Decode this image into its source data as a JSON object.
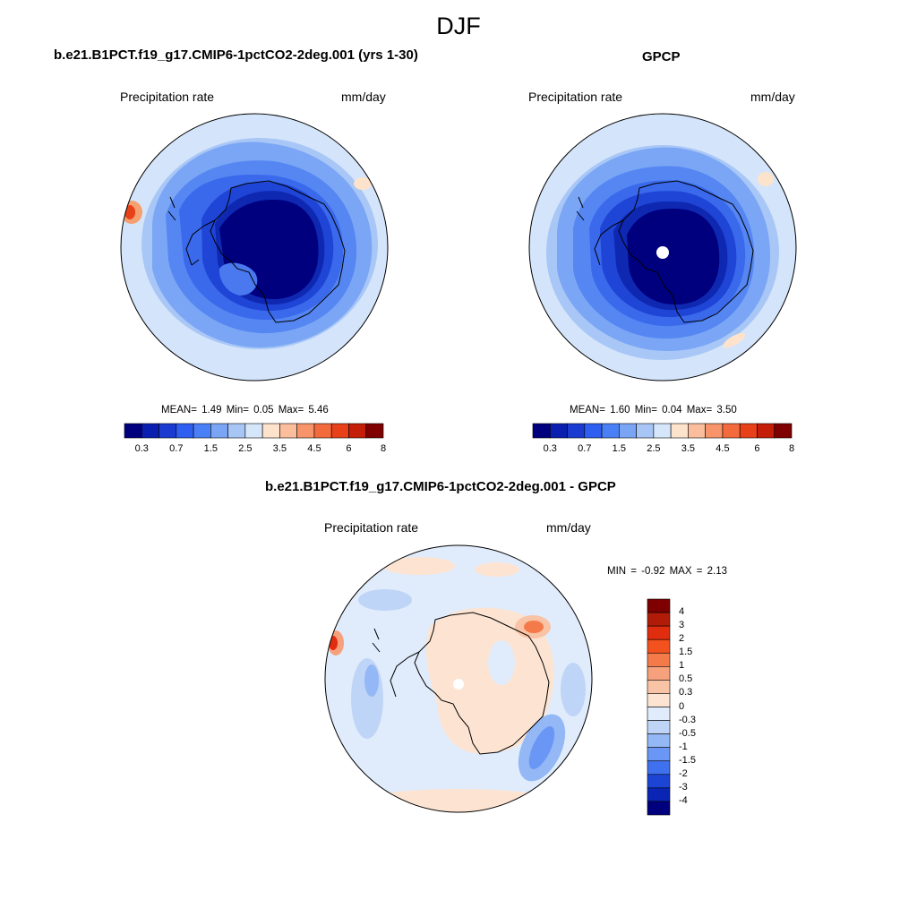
{
  "figure": {
    "season": "DJF"
  },
  "panels": {
    "model": {
      "title": "b.e21.B1PCT.f19_g17.CMIP6-1pctCO2-2deg.001 (yrs 1-30)",
      "variable": "Precipitation rate",
      "units": "mm/day",
      "stats": "MEAN=   1.49  Min=   0.05  Max=   5.46"
    },
    "obs": {
      "title": "GPCP",
      "variable": "Precipitation rate",
      "units": "mm/day",
      "stats": "MEAN=   1.60  Min=   0.04  Max=   3.50"
    },
    "diff": {
      "title": "b.e21.B1PCT.f19_g17.CMIP6-1pctCO2-2deg.001 - GPCP",
      "variable": "Precipitation rate",
      "units": "mm/day",
      "stats": "MIN =  -0.92 MAX =    2.13"
    }
  },
  "colorbars": {
    "abs": {
      "tick_labels": [
        "0.3",
        "0.7",
        "1.5",
        "2.5",
        "3.5",
        "4.5",
        "6",
        "8"
      ],
      "colors": [
        "#00007f",
        "#0a1fb0",
        "#1a3ad0",
        "#2f5ff0",
        "#4a80f5",
        "#7aa5f5",
        "#a8c6f5",
        "#d6e6fa",
        "#fde3cc",
        "#fbbe9d",
        "#f7946a",
        "#f36a3c",
        "#e8411a",
        "#c41e08",
        "#7f0000"
      ]
    },
    "diff": {
      "tick_labels": [
        "4",
        "3",
        "2",
        "1.5",
        "1",
        "0.5",
        "0.3",
        "0",
        "-0.3",
        "-0.5",
        "-1",
        "-1.5",
        "-2",
        "-3",
        "-4"
      ],
      "colors": [
        "#7f0000",
        "#b01c08",
        "#e02d10",
        "#f3521f",
        "#f47a4a",
        "#f6a07c",
        "#f9c3a5",
        "#fde4d2",
        "#e0ecfb",
        "#bfd5f7",
        "#94b7f5",
        "#6a97f5",
        "#3f70ee",
        "#1c45d6",
        "#0a25b4",
        "#00007f"
      ]
    }
  }
}
